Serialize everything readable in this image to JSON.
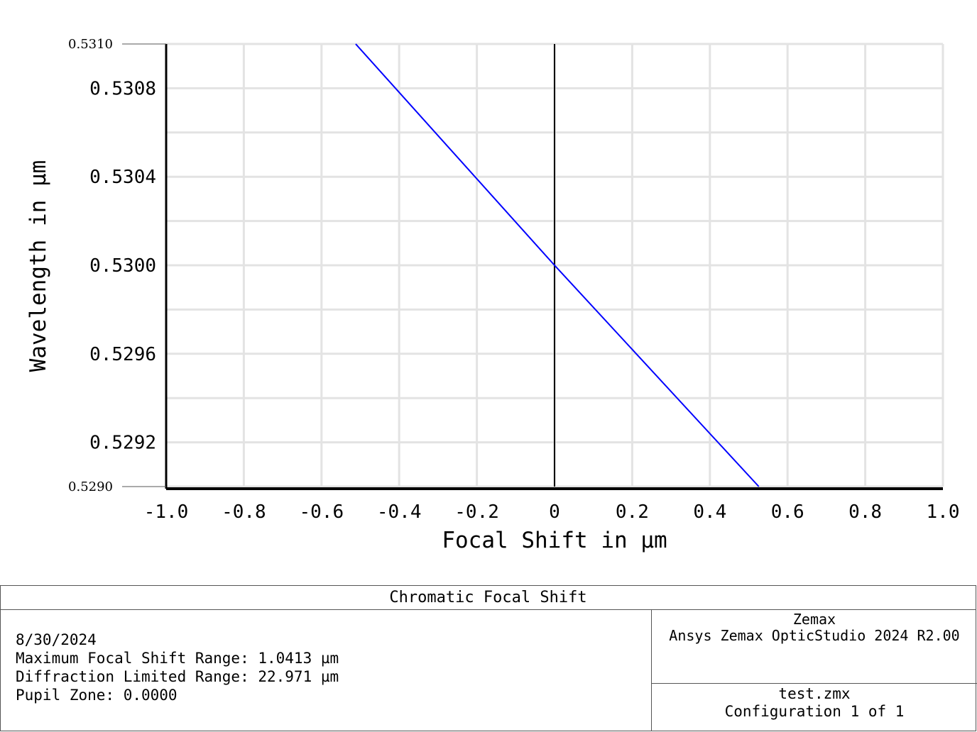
{
  "chart_data": {
    "type": "line",
    "title": "Chromatic Focal Shift",
    "xlabel": "Focal Shift in µm",
    "ylabel": "Wavelength in µm",
    "xlim": [
      -1.0,
      1.0
    ],
    "ylim": [
      0.529,
      0.531
    ],
    "x_ticks": [
      "-1.0",
      "-0.8",
      "-0.6",
      "-0.4",
      "-0.2",
      "0",
      "0.2",
      "0.4",
      "0.6",
      "0.8",
      "1.0"
    ],
    "y_ticks": [
      "0.5292",
      "0.5296",
      "0.5300",
      "0.5304",
      "0.5308"
    ],
    "y_end_labels": [
      "0.5290",
      "0.5310"
    ],
    "grid": true,
    "series": [
      {
        "color": "#0000ff",
        "x": [
          -0.512,
          0.0,
          0.526
        ],
        "y": [
          0.531,
          0.53,
          0.529
        ]
      }
    ]
  },
  "info": {
    "panel_title": "Chromatic Focal Shift",
    "date": "8/30/2024",
    "max_focal_shift": "Maximum Focal Shift Range: 1.0413 µm",
    "diffraction_limited": "Diffraction Limited Range: 22.971 µm",
    "pupil_zone": "Pupil Zone: 0.0000",
    "company": "Zemax",
    "software": "Ansys Zemax OpticStudio 2024 R2.00",
    "file": "test.zmx",
    "configuration": "Configuration 1 of 1"
  }
}
